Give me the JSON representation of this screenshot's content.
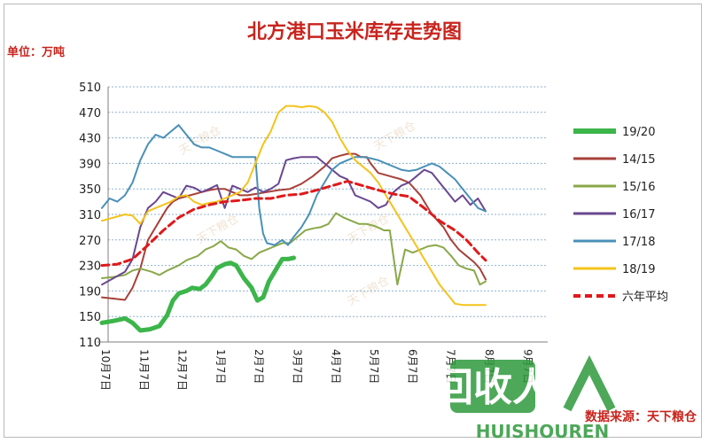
{
  "chart_data": {
    "type": "line",
    "title": "北方港口玉米库存走势图",
    "unit_label": "单位：万吨",
    "source_label": "数据来源：天下粮仓",
    "watermark_text": "天下粮仓",
    "logo": {
      "big": "回收人",
      "small": "HUISHOUREN"
    },
    "ylim": [
      110,
      510
    ],
    "yticks": [
      110,
      150,
      190,
      230,
      270,
      310,
      350,
      390,
      430,
      470,
      510
    ],
    "xlabels": [
      "10月7日",
      "11月7日",
      "12月7日",
      "1月7日",
      "2月7日",
      "3月7日",
      "4月7日",
      "5月7日",
      "6月7日",
      "7月7日",
      "8月7日",
      "9月7日"
    ],
    "grid": true,
    "legend_position": "right",
    "series": [
      {
        "name": "19/20",
        "color": "#3cb54a",
        "width": 5,
        "dash": "",
        "x": [
          0,
          0.3,
          0.6,
          0.8,
          1.0,
          1.25,
          1.5,
          1.7,
          1.85,
          2.0,
          2.2,
          2.35,
          2.55,
          2.7,
          2.85,
          3.0,
          3.2,
          3.35,
          3.5,
          3.7,
          3.9,
          4.05,
          4.2,
          4.35,
          4.55,
          4.7,
          4.85,
          5.0
        ],
        "y": [
          140,
          143,
          147,
          140,
          128,
          130,
          135,
          152,
          175,
          186,
          190,
          195,
          193,
          200,
          212,
          226,
          232,
          234,
          230,
          210,
          195,
          175,
          180,
          205,
          225,
          240,
          240,
          242
        ]
      },
      {
        "name": "14/15",
        "color": "#a84039",
        "width": 2,
        "dash": "",
        "x": [
          0,
          0.3,
          0.6,
          0.8,
          1.0,
          1.2,
          1.5,
          1.7,
          1.85,
          2.0,
          2.3,
          2.6,
          2.8,
          3.0,
          3.2,
          3.4,
          3.6,
          3.8,
          4.0,
          4.3,
          4.6,
          4.9,
          5.2,
          5.5,
          5.8,
          6.0,
          6.2,
          6.4,
          6.6,
          6.75,
          6.9,
          7.0,
          7.2,
          7.5,
          7.8,
          8.0,
          8.3,
          8.6,
          8.9,
          9.1,
          9.3,
          9.5,
          9.7,
          9.85,
          10.0
        ],
        "y": [
          180,
          178,
          176,
          195,
          225,
          270,
          300,
          320,
          330,
          335,
          340,
          345,
          348,
          350,
          350,
          345,
          340,
          340,
          342,
          345,
          348,
          350,
          358,
          370,
          385,
          398,
          402,
          405,
          405,
          400,
          400,
          390,
          375,
          370,
          365,
          360,
          340,
          310,
          290,
          270,
          255,
          245,
          235,
          225,
          208
        ]
      },
      {
        "name": "15/16",
        "color": "#8aa849",
        "width": 2,
        "dash": "",
        "x": [
          0,
          0.3,
          0.6,
          0.8,
          1.0,
          1.3,
          1.5,
          1.7,
          2.0,
          2.2,
          2.5,
          2.7,
          2.9,
          3.1,
          3.3,
          3.5,
          3.7,
          3.9,
          4.1,
          4.3,
          4.5,
          4.7,
          4.9,
          5.1,
          5.3,
          5.5,
          5.7,
          5.9,
          6.1,
          6.3,
          6.5,
          6.7,
          6.9,
          7.1,
          7.25,
          7.35,
          7.5,
          7.7,
          7.9,
          8.1,
          8.3,
          8.5,
          8.7,
          8.9,
          9.1,
          9.3,
          9.5,
          9.7,
          9.85,
          10.0
        ],
        "y": [
          210,
          212,
          215,
          222,
          225,
          220,
          215,
          222,
          230,
          238,
          245,
          255,
          260,
          268,
          258,
          255,
          245,
          240,
          250,
          255,
          260,
          265,
          265,
          275,
          285,
          288,
          290,
          295,
          312,
          305,
          300,
          295,
          295,
          292,
          288,
          285,
          285,
          200,
          255,
          250,
          255,
          260,
          262,
          258,
          245,
          230,
          225,
          222,
          200,
          205
        ]
      },
      {
        "name": "16/17",
        "color": "#6a478f",
        "width": 2,
        "dash": "",
        "x": [
          0,
          0.3,
          0.6,
          0.8,
          1.0,
          1.2,
          1.4,
          1.6,
          1.8,
          2.0,
          2.2,
          2.4,
          2.6,
          2.8,
          3.0,
          3.2,
          3.4,
          3.6,
          3.8,
          4.0,
          4.2,
          4.4,
          4.6,
          4.8,
          5.0,
          5.2,
          5.4,
          5.6,
          5.8,
          6.0,
          6.2,
          6.4,
          6.6,
          6.8,
          7.0,
          7.2,
          7.4,
          7.6,
          7.8,
          8.0,
          8.2,
          8.4,
          8.6,
          8.8,
          9.0,
          9.2,
          9.4,
          9.6,
          9.8,
          10.0
        ],
        "y": [
          200,
          210,
          220,
          240,
          290,
          320,
          330,
          345,
          340,
          335,
          355,
          352,
          345,
          350,
          356,
          320,
          355,
          350,
          345,
          352,
          345,
          350,
          358,
          395,
          398,
          400,
          400,
          400,
          390,
          380,
          370,
          365,
          340,
          335,
          330,
          320,
          325,
          345,
          355,
          360,
          370,
          380,
          375,
          360,
          345,
          330,
          340,
          325,
          335,
          315
        ]
      },
      {
        "name": "17/18",
        "color": "#4a90b8",
        "width": 2,
        "dash": "",
        "x": [
          0,
          0.2,
          0.4,
          0.6,
          0.8,
          1.0,
          1.2,
          1.4,
          1.6,
          1.8,
          2.0,
          2.2,
          2.4,
          2.6,
          2.8,
          3.0,
          3.2,
          3.4,
          3.6,
          3.8,
          4.0,
          4.1,
          4.2,
          4.3,
          4.5,
          4.7,
          4.85,
          5.0,
          5.2,
          5.4,
          5.6,
          5.8,
          6.0,
          6.2,
          6.4,
          6.6,
          6.8,
          7.0,
          7.2,
          7.4,
          7.6,
          7.8,
          8.0,
          8.2,
          8.4,
          8.6,
          8.8,
          9.0,
          9.2,
          9.4,
          9.6,
          9.8,
          10.0
        ],
        "y": [
          320,
          335,
          330,
          340,
          360,
          395,
          420,
          435,
          430,
          440,
          450,
          435,
          420,
          415,
          415,
          410,
          405,
          400,
          400,
          400,
          400,
          320,
          280,
          265,
          262,
          270,
          262,
          275,
          290,
          310,
          340,
          360,
          380,
          390,
          395,
          400,
          400,
          398,
          395,
          390,
          385,
          380,
          378,
          380,
          385,
          390,
          385,
          375,
          365,
          350,
          335,
          320,
          315
        ]
      },
      {
        "name": "18/19",
        "color": "#f5c31a",
        "width": 2,
        "dash": "",
        "x": [
          0,
          0.3,
          0.6,
          0.8,
          1.0,
          1.2,
          1.4,
          1.6,
          1.8,
          2.0,
          2.2,
          2.4,
          2.6,
          2.8,
          3.0,
          3.2,
          3.4,
          3.6,
          3.8,
          4.0,
          4.2,
          4.4,
          4.6,
          4.8,
          5.0,
          5.2,
          5.4,
          5.6,
          5.8,
          6.0,
          6.2,
          6.4,
          6.6,
          6.8,
          7.0,
          7.2,
          7.4,
          7.6,
          7.8,
          8.0,
          8.2,
          8.4,
          8.6,
          8.8,
          9.0,
          9.2,
          9.4,
          9.6,
          9.8,
          10.0
        ],
        "y": [
          300,
          305,
          310,
          308,
          295,
          315,
          320,
          325,
          330,
          338,
          340,
          330,
          325,
          328,
          330,
          335,
          340,
          345,
          360,
          390,
          420,
          440,
          470,
          480,
          480,
          478,
          480,
          478,
          470,
          455,
          430,
          410,
          395,
          385,
          375,
          360,
          340,
          320,
          300,
          280,
          260,
          240,
          220,
          200,
          185,
          170,
          168,
          168,
          168,
          168
        ]
      },
      {
        "name": "六年平均",
        "color": "#e0191b",
        "width": 3,
        "dash": "8,5",
        "x": [
          0,
          0.4,
          0.8,
          1.2,
          1.6,
          2.0,
          2.4,
          2.8,
          3.2,
          3.6,
          4.0,
          4.4,
          4.8,
          5.2,
          5.6,
          6.0,
          6.4,
          6.8,
          7.2,
          7.6,
          8.0,
          8.4,
          8.8,
          9.2,
          9.5,
          9.8,
          10.0
        ],
        "y": [
          230,
          232,
          240,
          262,
          285,
          305,
          318,
          325,
          330,
          332,
          335,
          335,
          340,
          342,
          348,
          355,
          362,
          355,
          348,
          342,
          338,
          320,
          300,
          285,
          270,
          250,
          238
        ]
      }
    ]
  }
}
